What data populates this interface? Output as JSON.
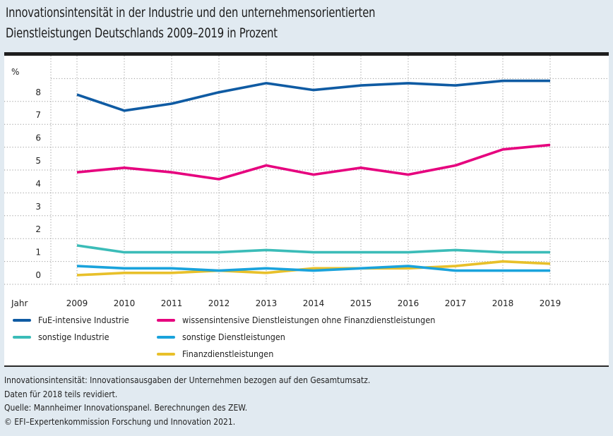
{
  "title": {
    "line1": "Innovationsintensität in der Industrie und den unternehmensorientierten",
    "line2": "Dienstleistungen Deutschlands 2009–2019 in Prozent"
  },
  "chart_data": {
    "type": "line",
    "title": "Innovationsintensität in der Industrie und den unternehmensorientierten Dienstleistungen Deutschlands 2009–2019 in Prozent",
    "xlabel": "Jahr",
    "ylabel": "%",
    "x": [
      "2009",
      "2010",
      "2011",
      "2012",
      "2013",
      "2014",
      "2015",
      "2016",
      "2017",
      "2018",
      "2019"
    ],
    "yticks": [
      "0",
      "1",
      "2",
      "3",
      "4",
      "5",
      "6",
      "7",
      "8"
    ],
    "ylim": [
      0,
      9
    ],
    "grid": true,
    "legend_position": "bottom",
    "series": [
      {
        "name": "FuE-intensive Industrie",
        "color": "#0f5ba3",
        "values": [
          8.3,
          7.6,
          7.9,
          8.4,
          8.8,
          8.5,
          8.7,
          8.8,
          8.7,
          8.9,
          8.9
        ]
      },
      {
        "name": "wissensintensive Dienstleistungen ohne Finanzdienstleistungen",
        "color": "#e6007e",
        "values": [
          4.9,
          5.1,
          4.9,
          4.6,
          5.2,
          4.8,
          5.1,
          4.8,
          5.2,
          5.9,
          6.1
        ]
      },
      {
        "name": "sonstige Industrie",
        "color": "#3bbcb8",
        "values": [
          1.7,
          1.4,
          1.4,
          1.4,
          1.5,
          1.4,
          1.4,
          1.4,
          1.5,
          1.4,
          1.4
        ]
      },
      {
        "name": "sonstige Dienstleistungen",
        "color": "#1aa3dc",
        "values": [
          0.8,
          0.7,
          0.7,
          0.6,
          0.7,
          0.6,
          0.7,
          0.8,
          0.6,
          0.6,
          0.6
        ]
      },
      {
        "name": "Finanzdienstleistungen",
        "color": "#e8c02a",
        "values": [
          0.4,
          0.5,
          0.5,
          0.6,
          0.5,
          0.7,
          0.7,
          0.7,
          0.8,
          1.0,
          0.9
        ]
      }
    ]
  },
  "legend": [
    {
      "label": "FuE-intensive Industrie",
      "color": "#0f5ba3"
    },
    {
      "label": "wissensintensive Dienstleistungen ohne Finanzdienstleistungen",
      "color": "#e6007e"
    },
    {
      "label": "sonstige Industrie",
      "color": "#3bbcb8"
    },
    {
      "label": "sonstige Dienstleistungen",
      "color": "#1aa3dc"
    },
    {
      "label": "Finanzdienstleistungen",
      "color": "#e8c02a"
    }
  ],
  "footer": [
    "Innovationsintensität: Innovationsausgaben der Unternehmen bezogen auf den Gesamtumsatz.",
    "Daten für 2018 teils revidiert.",
    "Quelle: Mannheimer Innovationspanel. Berechnungen des ZEW.",
    "© EFI–Expertenkommission Forschung und Innovation 2021."
  ]
}
